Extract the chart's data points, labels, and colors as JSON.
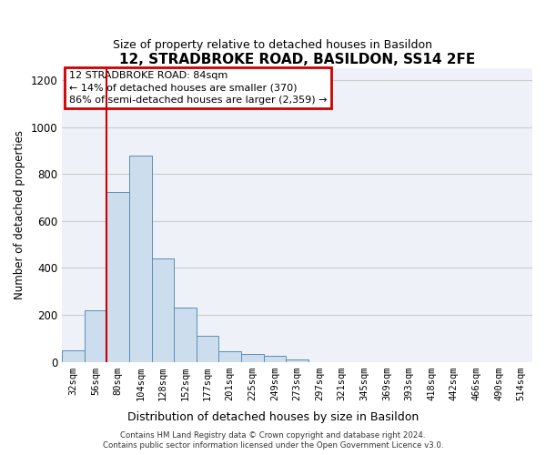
{
  "title": "12, STRADBROKE ROAD, BASILDON, SS14 2FE",
  "subtitle": "Size of property relative to detached houses in Basildon",
  "xlabel": "Distribution of detached houses by size in Basildon",
  "ylabel": "Number of detached properties",
  "footer_line1": "Contains HM Land Registry data © Crown copyright and database right 2024.",
  "footer_line2": "Contains public sector information licensed under the Open Government Licence v3.0.",
  "bin_labels": [
    "32sqm",
    "56sqm",
    "80sqm",
    "104sqm",
    "128sqm",
    "152sqm",
    "177sqm",
    "201sqm",
    "225sqm",
    "249sqm",
    "273sqm",
    "297sqm",
    "321sqm",
    "345sqm",
    "369sqm",
    "393sqm",
    "418sqm",
    "442sqm",
    "466sqm",
    "490sqm",
    "514sqm"
  ],
  "bar_values": [
    50,
    220,
    725,
    880,
    440,
    230,
    110,
    47,
    35,
    25,
    12,
    0,
    0,
    0,
    0,
    0,
    0,
    0,
    0,
    0,
    0
  ],
  "bar_color": "#ccdded",
  "bar_edge_color": "#5b8db8",
  "marker_label": "12 STRADBROKE ROAD: 84sqm",
  "annotation_line1": "← 14% of detached houses are smaller (370)",
  "annotation_line2": "86% of semi-detached houses are larger (2,359) →",
  "box_color": "#ffffff",
  "box_edge_color": "#cc0000",
  "vline_color": "#cc0000",
  "vline_x_index": 2,
  "ylim": [
    0,
    1250
  ],
  "yticks": [
    0,
    200,
    400,
    600,
    800,
    1000,
    1200
  ],
  "grid_color": "#cccccc",
  "bg_color": "#eef2f8"
}
